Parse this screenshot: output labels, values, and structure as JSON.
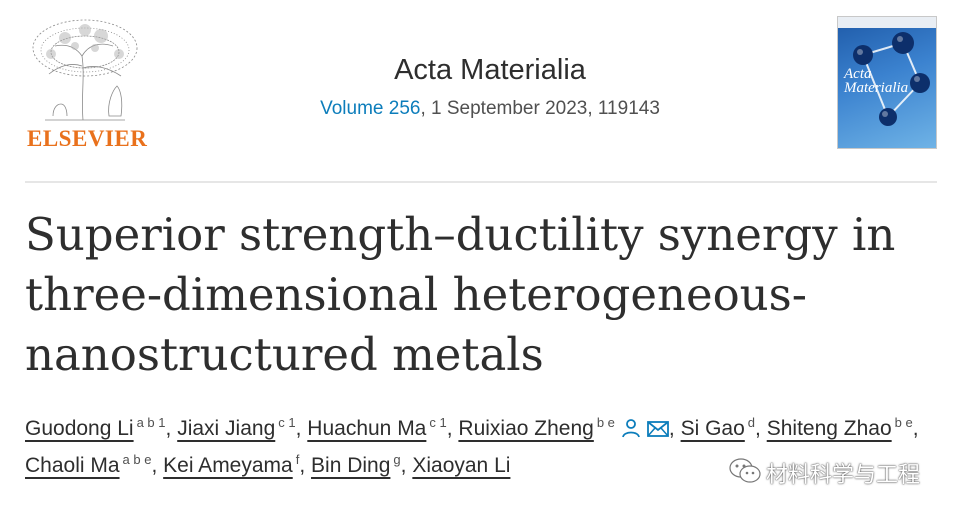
{
  "publisher": {
    "name": "ELSEVIER"
  },
  "journal": {
    "title": "Acta Materialia",
    "volume": "Volume 256",
    "issue_rest": ", 1 September 2023, 119143",
    "cover_title": "Acta Materialia"
  },
  "article": {
    "title": "Superior strength–ductility synergy in three-dimensional heterogeneous-nanostructured metals"
  },
  "authors": [
    {
      "name": "Guodong Li",
      "affil": "a b 1",
      "sep": ","
    },
    {
      "name": "Jiaxi Jiang",
      "affil": "c 1",
      "sep": ","
    },
    {
      "name": "Huachun Ma",
      "affil": "c 1",
      "sep": ","
    },
    {
      "name": "Ruixiao Zheng",
      "affil": "b e",
      "sep": ","
    },
    {
      "name": "Si Gao",
      "affil": "d",
      "sep": ","
    },
    {
      "name": "Shiteng Zhao",
      "affil": "b e",
      "sep": ","
    },
    {
      "name": "Chaoli Ma",
      "affil": "a b e",
      "sep": ","
    },
    {
      "name": "Kei Ameyama",
      "affil": "f",
      "sep": ","
    },
    {
      "name": "Bin Ding",
      "affil": "g",
      "sep": ","
    },
    {
      "name": "Xiaoyan Li",
      "affil": "",
      "sep": ""
    }
  ],
  "icons": {
    "corresponding_author": "person-icon",
    "email": "envelope-icon"
  },
  "watermark": {
    "text": "材料科学与工程"
  },
  "colors": {
    "link": "#0c7dbb",
    "publisher_orange": "#e9711c",
    "text": "#2e2e2e"
  }
}
